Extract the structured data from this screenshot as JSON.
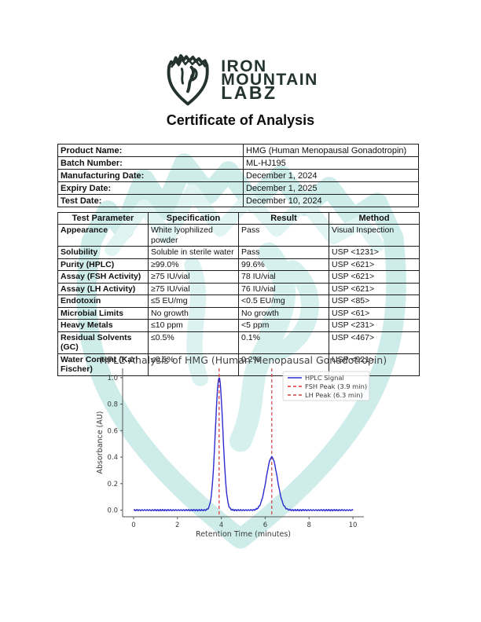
{
  "header": {
    "brand_line1": "IRON",
    "brand_line2": "MOUNTAIN",
    "brand_line3": "LABZ",
    "title": "Certificate of Analysis"
  },
  "product_info": {
    "rows": [
      {
        "label": "Product Name:",
        "value": "HMG (Human Menopausal Gonadotropin)"
      },
      {
        "label": "Batch Number:",
        "value": "ML-HJ195"
      },
      {
        "label": "Manufacturing Date:",
        "value": "December 1, 2024"
      },
      {
        "label": "Expiry Date:",
        "value": "December 1, 2025"
      },
      {
        "label": "Test Date:",
        "value": "December 10, 2024"
      }
    ]
  },
  "test_table": {
    "headers": [
      "Test Parameter",
      "Specification",
      "Result",
      "Method"
    ],
    "rows": [
      [
        "Appearance",
        "White lyophilized powder",
        "Pass",
        "Visual Inspection"
      ],
      [
        "Solubility",
        "Soluble in sterile water",
        "Pass",
        "USP <1231>"
      ],
      [
        "Purity (HPLC)",
        "≥99.0%",
        "99.6%",
        "USP <621>"
      ],
      [
        "Assay (FSH Activity)",
        "≥75 IU/vial",
        "78 IU/vial",
        "USP <621>"
      ],
      [
        "Assay (LH Activity)",
        "≥75 IU/vial",
        "76 IU/vial",
        "USP <621>"
      ],
      [
        "Endotoxin",
        "≤5 EU/mg",
        "<0.5 EU/mg",
        "USP <85>"
      ],
      [
        "Microbial Limits",
        "No growth",
        "No growth",
        "USP <61>"
      ],
      [
        "Heavy Metals",
        "≤10 ppm",
        "<5 ppm",
        "USP <231>"
      ],
      [
        "Residual Solvents (GC)",
        "≤0.5%",
        "0.1%",
        "USP <467>"
      ],
      [
        "Water Content (Karl Fischer)",
        "≤0.5%",
        "0.2%",
        "USP <921>"
      ]
    ]
  },
  "chart_data": {
    "type": "line",
    "title": "HPLC Analysis of HMG (Human Menopausal Gonadotropin)",
    "xlabel": "Retention Time (minutes)",
    "ylabel": "Absorbance (AU)",
    "xlim": [
      -0.5,
      10.5
    ],
    "ylim": [
      -0.05,
      1.07
    ],
    "xticks": [
      0,
      2,
      4,
      6,
      8,
      10
    ],
    "yticks": [
      0.0,
      0.2,
      0.4,
      0.6,
      0.8,
      1.0
    ],
    "grid": false,
    "legend_position": "upper right",
    "series": [
      {
        "name": "HPLC Signal",
        "color": "#2b2bd0",
        "baseline": 0.0,
        "peaks": [
          {
            "center": 3.9,
            "amplitude": 1.0,
            "sigma": 0.17
          },
          {
            "center": 6.3,
            "amplitude": 0.4,
            "sigma": 0.25
          }
        ]
      }
    ],
    "vlines": [
      {
        "x": 3.9,
        "label": "FSH Peak (3.9 min)",
        "color": "#e03434",
        "style": "dashed"
      },
      {
        "x": 6.3,
        "label": "LH Peak (6.3 min)",
        "color": "#cc4040",
        "style": "dashed"
      }
    ]
  },
  "colors": {
    "brand_dark": "#24332e",
    "watermark_teal": "#9edbd6",
    "watermark_teal_light": "#c2eae6",
    "table_border": "#1c1c1c",
    "axis_gray": "#555555",
    "chart_text": "#3a3a3a"
  }
}
